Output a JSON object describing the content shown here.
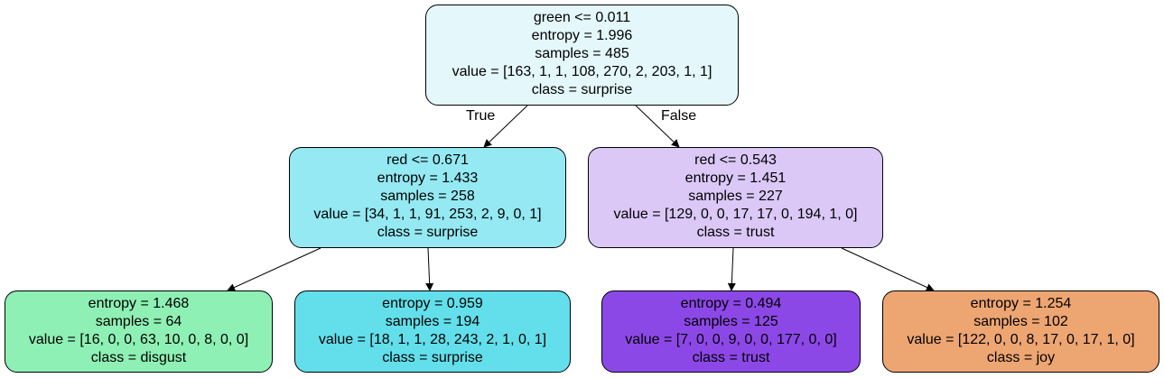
{
  "nodes": {
    "root": {
      "split": "green <= 0.011",
      "entropy": "entropy = 1.996",
      "samples": "samples = 485",
      "value": "value = [163, 1, 1, 108, 270, 2, 203, 1, 1]",
      "class": "class = surprise",
      "color": "#e4f8fb"
    },
    "left": {
      "split": "red <= 0.671",
      "entropy": "entropy = 1.433",
      "samples": "samples = 258",
      "value": "value = [34, 1, 1, 91, 253, 2, 9, 0, 1]",
      "class": "class = surprise",
      "color": "#94e9f2"
    },
    "right": {
      "split": "red <= 0.543",
      "entropy": "entropy = 1.451",
      "samples": "samples = 227",
      "value": "value = [129, 0, 0, 17, 17, 0, 194, 1, 0]",
      "class": "class = trust",
      "color": "#dbc8f7"
    },
    "ll": {
      "entropy": "entropy = 1.468",
      "samples": "samples = 64",
      "value": "value = [16, 0, 0, 63, 10, 0, 8, 0, 0]",
      "class": "class = disgust",
      "color": "#8ef0b4"
    },
    "lr": {
      "entropy": "entropy = 0.959",
      "samples": "samples = 194",
      "value": "value = [18, 1, 1, 28, 243, 2, 1, 0, 1]",
      "class": "class = surprise",
      "color": "#62dfea"
    },
    "rl": {
      "entropy": "entropy = 0.494",
      "samples": "samples = 125",
      "value": "value = [7, 0, 0, 9, 0, 0, 177, 0, 0]",
      "class": "class = trust",
      "color": "#8c48e7"
    },
    "rr": {
      "entropy": "entropy = 1.254",
      "samples": "samples = 102",
      "value": "value = [122, 0, 0, 8, 17, 0, 17, 1, 0]",
      "class": "class = joy",
      "color": "#eda572"
    }
  },
  "edge_labels": {
    "true_label": "True",
    "false_label": "False"
  },
  "colors": {
    "edge": "#000000"
  }
}
